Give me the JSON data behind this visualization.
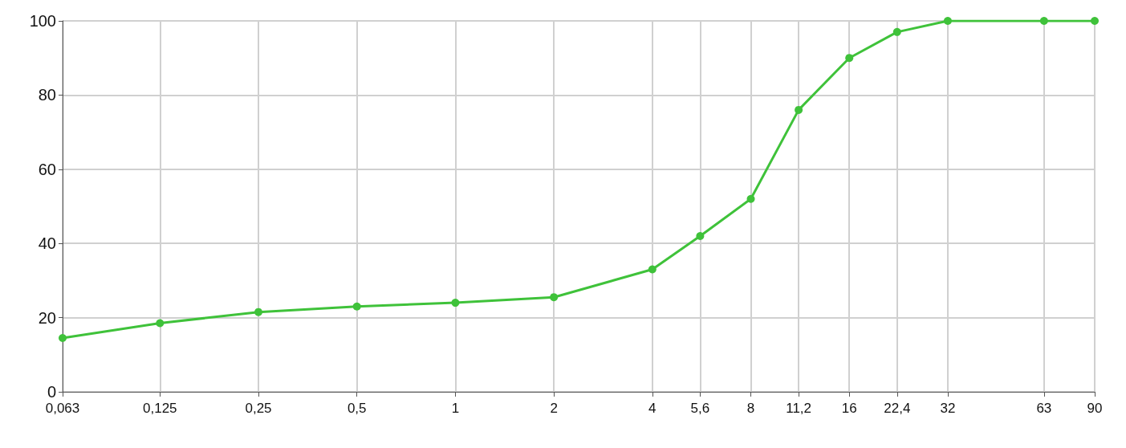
{
  "chart_data": {
    "type": "line",
    "log": "x",
    "x": [
      0.063,
      0.125,
      0.25,
      0.5,
      1,
      2,
      4,
      5.6,
      8,
      11.2,
      16,
      22.4,
      32,
      63,
      90
    ],
    "series": [
      {
        "color": "#3fc23a",
        "values": [
          14.5,
          18.5,
          21.5,
          23,
          24,
          25.5,
          33,
          42,
          52,
          76,
          90,
          97,
          100,
          100,
          100
        ]
      }
    ],
    "xlim": [
      0.063,
      90
    ],
    "xticks": [
      {
        "value": 0.063,
        "label": "0,063"
      },
      {
        "value": 0.125,
        "label": "0,125"
      },
      {
        "value": 0.25,
        "label": "0,25"
      },
      {
        "value": 0.5,
        "label": "0,5"
      },
      1,
      2,
      4,
      {
        "value": 5.6,
        "label": "5,6"
      },
      8,
      {
        "value": 11.2,
        "label": "11,2"
      },
      16,
      {
        "value": 22.4,
        "label": "22,4"
      },
      32,
      63,
      90
    ],
    "ylim": [
      0,
      100
    ],
    "yticks": [
      0,
      20,
      40,
      60,
      80,
      100
    ],
    "grid": true,
    "marker": "circle",
    "line_style": "solid"
  }
}
